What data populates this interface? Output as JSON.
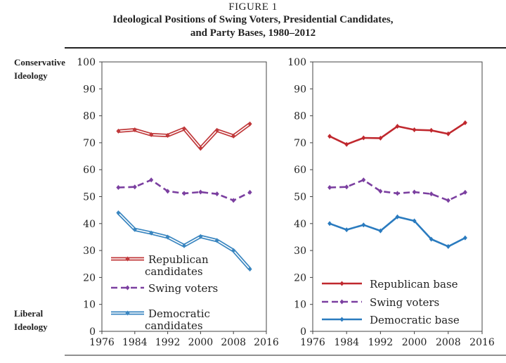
{
  "figure_label": "FIGURE 1",
  "title_line1": "Ideological Positions of Swing Voters, Presidential Candidates,",
  "title_line2": "and Party Bases, 1980–2012",
  "side_labels": {
    "top_line1": "Conservative",
    "top_line2": "Ideology",
    "bottom_line1": "Liberal",
    "bottom_line2": "Ideology"
  },
  "chart_data": [
    {
      "type": "line",
      "x": [
        1980,
        1984,
        1988,
        1992,
        1996,
        2000,
        2004,
        2008,
        2012
      ],
      "xlim": [
        1976,
        2016
      ],
      "ylim": [
        0,
        100
      ],
      "xticks": [
        1976,
        1984,
        1992,
        2000,
        2008,
        2016
      ],
      "yticks": [
        0,
        10,
        20,
        30,
        40,
        50,
        60,
        70,
        80,
        90,
        100
      ],
      "grid": false,
      "legend_placement": "bottom-left",
      "series": [
        {
          "name": "Republican candidates",
          "legend_lines": [
            "Republican",
            "candidates"
          ],
          "color": "#c0393b",
          "style": "double",
          "values": [
            74.3,
            74.8,
            73.0,
            72.7,
            75.2,
            68.0,
            74.6,
            72.5,
            77.0
          ]
        },
        {
          "name": "Swing voters",
          "legend_lines": [
            "Swing voters"
          ],
          "color": "#7b3fa0",
          "style": "dashed",
          "values": [
            53.4,
            53.6,
            56.2,
            52.0,
            51.2,
            51.7,
            51.0,
            48.6,
            51.6
          ]
        },
        {
          "name": "Democratic candidates",
          "legend_lines": [
            "Democratic",
            "candidates"
          ],
          "color": "#3a86c0",
          "style": "double",
          "values": [
            44.0,
            37.8,
            36.5,
            35.0,
            31.8,
            35.2,
            33.7,
            30.0,
            23.1
          ]
        }
      ]
    },
    {
      "type": "line",
      "x": [
        1980,
        1984,
        1988,
        1992,
        1996,
        2000,
        2004,
        2008,
        2012
      ],
      "xlim": [
        1976,
        2016
      ],
      "ylim": [
        0,
        100
      ],
      "xticks": [
        1976,
        1984,
        1992,
        2000,
        2008,
        2016
      ],
      "yticks": [
        0,
        10,
        20,
        30,
        40,
        50,
        60,
        70,
        80,
        90,
        100
      ],
      "grid": false,
      "legend_placement": "bottom-left",
      "series": [
        {
          "name": "Republican base",
          "legend_lines": [
            "Republican base"
          ],
          "color": "#c0282e",
          "style": "solid",
          "values": [
            72.4,
            69.4,
            71.8,
            71.7,
            76.1,
            74.8,
            74.6,
            73.3,
            77.4
          ]
        },
        {
          "name": "Swing voters",
          "legend_lines": [
            "Swing voters"
          ],
          "color": "#7b3fa0",
          "style": "dashed",
          "values": [
            53.4,
            53.6,
            56.2,
            52.0,
            51.2,
            51.7,
            51.0,
            48.6,
            51.6
          ]
        },
        {
          "name": "Democratic base",
          "legend_lines": [
            "Democratic base"
          ],
          "color": "#2a7bbf",
          "style": "solid",
          "values": [
            40.0,
            37.7,
            39.5,
            37.3,
            42.5,
            41.0,
            34.2,
            31.5,
            34.7
          ]
        }
      ]
    }
  ]
}
